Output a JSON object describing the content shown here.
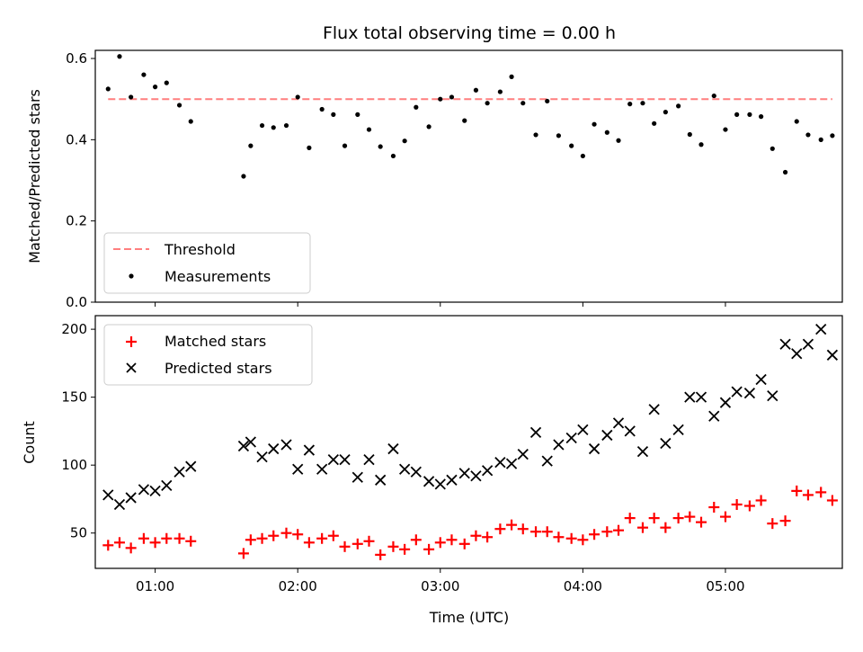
{
  "chart_data": [
    {
      "type": "scatter",
      "title": "Flux total observing time = 0.00 h",
      "xlabel": "",
      "ylabel": "Matched/Predicted stars",
      "ylim": [
        0,
        0.62
      ],
      "xlim": [
        0.58,
        5.82
      ],
      "y_ticks": [
        0.0,
        0.2,
        0.4,
        0.6
      ],
      "y_tick_labels": [
        "0.0",
        "0.2",
        "0.4",
        "0.6"
      ],
      "grid": false,
      "legend_placement": "lower-left",
      "threshold": {
        "name": "Threshold",
        "value": 0.5,
        "x_range": [
          0.67,
          5.75
        ],
        "color": "#ff7f7f",
        "style": "dashed"
      },
      "series": [
        {
          "name": "Measurements",
          "color": "#000000",
          "marker": "dot",
          "x": [
            0.67,
            0.75,
            0.83,
            0.92,
            1.0,
            1.08,
            1.17,
            1.25,
            1.62,
            1.67,
            1.75,
            1.83,
            1.92,
            2.0,
            2.08,
            2.17,
            2.25,
            2.33,
            2.42,
            2.5,
            2.58,
            2.67,
            2.75,
            2.83,
            2.92,
            3.0,
            3.08,
            3.17,
            3.25,
            3.33,
            3.42,
            3.5,
            3.58,
            3.67,
            3.75,
            3.83,
            3.92,
            4.0,
            4.08,
            4.17,
            4.25,
            4.33,
            4.42,
            4.5,
            4.58,
            4.67,
            4.75,
            4.83,
            4.92,
            5.0,
            5.08,
            5.17,
            5.25,
            5.33,
            5.42,
            5.5,
            5.58,
            5.67,
            5.75
          ],
          "y": [
            0.525,
            0.605,
            0.505,
            0.56,
            0.53,
            0.54,
            0.485,
            0.445,
            0.31,
            0.385,
            0.435,
            0.43,
            0.435,
            0.505,
            0.38,
            0.475,
            0.462,
            0.385,
            0.462,
            0.425,
            0.383,
            0.36,
            0.397,
            0.48,
            0.432,
            0.5,
            0.505,
            0.447,
            0.522,
            0.49,
            0.518,
            0.555,
            0.49,
            0.412,
            0.495,
            0.41,
            0.385,
            0.36,
            0.438,
            0.418,
            0.398,
            0.488,
            0.49,
            0.44,
            0.468,
            0.483,
            0.413,
            0.388,
            0.508,
            0.425,
            0.462,
            0.462,
            0.457,
            0.378,
            0.32,
            0.445,
            0.412,
            0.4,
            0.41
          ]
        }
      ]
    },
    {
      "type": "scatter",
      "title": "",
      "xlabel": "Time (UTC)",
      "ylabel": "Count",
      "ylim": [
        24,
        210
      ],
      "xlim": [
        0.58,
        5.82
      ],
      "x_ticks": [
        1,
        2,
        3,
        4,
        5
      ],
      "x_tick_labels": [
        "01:00",
        "02:00",
        "03:00",
        "04:00",
        "05:00"
      ],
      "y_ticks": [
        50,
        100,
        150,
        200
      ],
      "y_tick_labels": [
        "50",
        "100",
        "150",
        "200"
      ],
      "grid": false,
      "legend_placement": "upper-left",
      "series": [
        {
          "name": "Matched stars",
          "color": "#ff0000",
          "marker": "plus",
          "x": [
            0.67,
            0.75,
            0.83,
            0.92,
            1.0,
            1.08,
            1.17,
            1.25,
            1.62,
            1.67,
            1.75,
            1.83,
            1.92,
            2.0,
            2.08,
            2.17,
            2.25,
            2.33,
            2.42,
            2.5,
            2.58,
            2.67,
            2.75,
            2.83,
            2.92,
            3.0,
            3.08,
            3.17,
            3.25,
            3.33,
            3.42,
            3.5,
            3.58,
            3.67,
            3.75,
            3.83,
            3.92,
            4.0,
            4.08,
            4.17,
            4.25,
            4.33,
            4.42,
            4.5,
            4.58,
            4.67,
            4.75,
            4.83,
            4.92,
            5.0,
            5.08,
            5.17,
            5.25,
            5.33,
            5.42,
            5.5,
            5.58,
            5.67,
            5.75
          ],
          "y": [
            41,
            43,
            39,
            46,
            43,
            46,
            46,
            44,
            35,
            45,
            46,
            48,
            50,
            49,
            43,
            46,
            48,
            40,
            42,
            44,
            34,
            40,
            38,
            45,
            38,
            43,
            45,
            42,
            48,
            47,
            53,
            56,
            53,
            51,
            51,
            47,
            46,
            45,
            49,
            51,
            52,
            61,
            54,
            61,
            54,
            61,
            62,
            58,
            69,
            62,
            71,
            70,
            74,
            57,
            59,
            81,
            78,
            80,
            74
          ]
        },
        {
          "name": "Predicted stars",
          "color": "#000000",
          "marker": "x",
          "x": [
            0.67,
            0.75,
            0.83,
            0.92,
            1.0,
            1.08,
            1.17,
            1.25,
            1.62,
            1.67,
            1.75,
            1.83,
            1.92,
            2.0,
            2.08,
            2.17,
            2.25,
            2.33,
            2.42,
            2.5,
            2.58,
            2.67,
            2.75,
            2.83,
            2.92,
            3.0,
            3.08,
            3.17,
            3.25,
            3.33,
            3.42,
            3.5,
            3.58,
            3.67,
            3.75,
            3.83,
            3.92,
            4.0,
            4.08,
            4.17,
            4.25,
            4.33,
            4.42,
            4.5,
            4.58,
            4.67,
            4.75,
            4.83,
            4.92,
            5.0,
            5.08,
            5.17,
            5.25,
            5.33,
            5.42,
            5.5,
            5.58,
            5.67,
            5.75
          ],
          "y": [
            78,
            71,
            76,
            82,
            81,
            85,
            95,
            99,
            114,
            117,
            106,
            112,
            115,
            97,
            111,
            97,
            104,
            104,
            91,
            104,
            89,
            112,
            97,
            95,
            88,
            86,
            89,
            94,
            92,
            96,
            102,
            101,
            108,
            124,
            103,
            115,
            120,
            126,
            112,
            122,
            131,
            125,
            110,
            141,
            116,
            126,
            150,
            150,
            136,
            146,
            154,
            153,
            163,
            151,
            189,
            182,
            189,
            200,
            181
          ]
        }
      ]
    }
  ]
}
